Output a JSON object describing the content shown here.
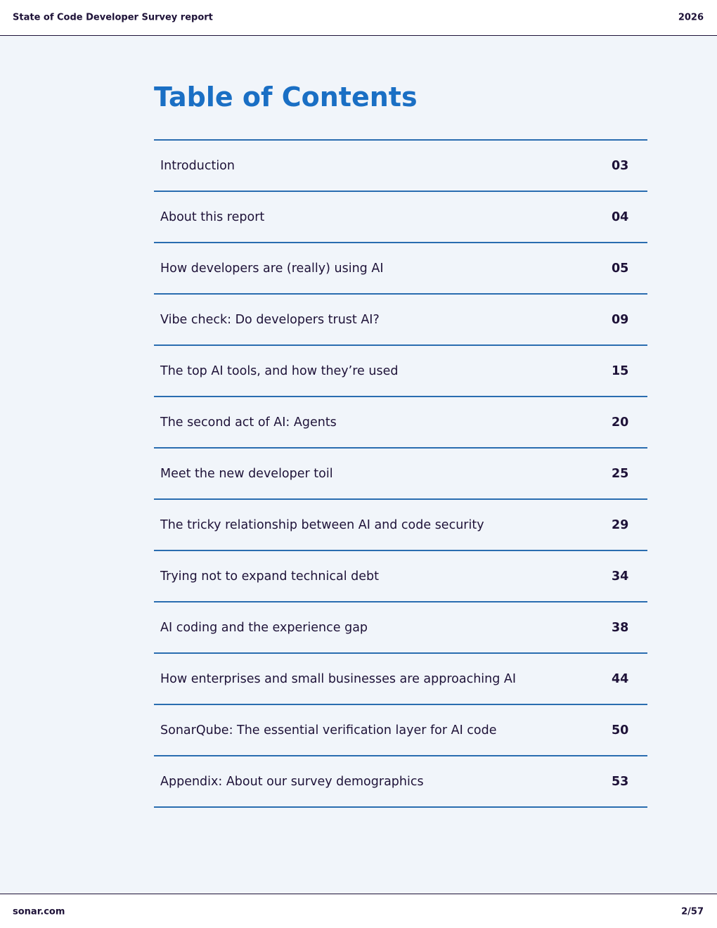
{
  "header": {
    "title": "State of Code Developer Survey report",
    "year": "2026"
  },
  "toc": {
    "title": "Table of Contents",
    "entries": [
      {
        "label": "Introduction",
        "page": "03"
      },
      {
        "label": "About this report",
        "page": "04"
      },
      {
        "label": "How developers are (really) using AI",
        "page": "05"
      },
      {
        "label": "Vibe check: Do developers trust AI?",
        "page": "09"
      },
      {
        "label": "The top AI tools, and how they’re used",
        "page": "15"
      },
      {
        "label": "The second act of AI: Agents",
        "page": "20"
      },
      {
        "label": "Meet the new developer toil",
        "page": "25"
      },
      {
        "label": "The tricky relationship between AI and code security",
        "page": "29"
      },
      {
        "label": "Trying not to expand technical debt",
        "page": "34"
      },
      {
        "label": "AI coding and the experience gap",
        "page": "38"
      },
      {
        "label": "How enterprises and small businesses are approaching AI",
        "page": "44"
      },
      {
        "label": "SonarQube: The essential verification layer for AI code",
        "page": "50"
      },
      {
        "label": "Appendix: About our survey demographics",
        "page": "53"
      }
    ]
  },
  "footer": {
    "site": "sonar.com",
    "page": "2/57"
  }
}
